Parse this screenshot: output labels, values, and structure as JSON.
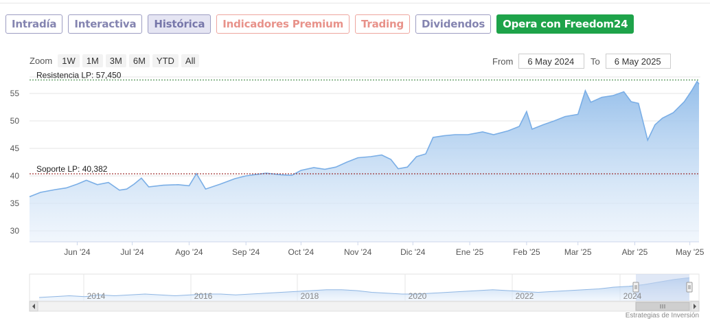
{
  "tabs": [
    {
      "label": "Intradía",
      "style": "purple",
      "active": false
    },
    {
      "label": "Interactiva",
      "style": "purple",
      "active": false
    },
    {
      "label": "Histórica",
      "style": "purple",
      "active": true
    },
    {
      "label": "Indicadores Premium",
      "style": "salmon",
      "active": false
    },
    {
      "label": "Trading",
      "style": "salmon",
      "active": false
    },
    {
      "label": "Dividendos",
      "style": "purple",
      "active": false
    },
    {
      "label": "Opera con Freedom24",
      "style": "green",
      "active": false
    }
  ],
  "zoom": {
    "label": "Zoom",
    "buttons": [
      "1W",
      "1M",
      "3M",
      "6M",
      "YTD",
      "All"
    ]
  },
  "range": {
    "from_label": "From",
    "from_value": "6 May 2024",
    "to_label": "To",
    "to_value": "6 May 2025"
  },
  "colors": {
    "series_line": "#7aaee6",
    "series_fill_top": "#8fbbe9",
    "resistance_line": "#2e7d32",
    "support_line": "#8b0000"
  },
  "chart_data": {
    "type": "area",
    "x_range": [
      "2024-05-06",
      "2025-05-06"
    ],
    "ylim": [
      28,
      58
    ],
    "yticks": [
      30,
      35,
      40,
      45,
      50,
      55
    ],
    "grid": true,
    "x_tick_labels": [
      "Jun '24",
      "Jul '24",
      "Ago '24",
      "Sep '24",
      "Oct '24",
      "Nov '24",
      "Dic '24",
      "Ene '25",
      "Feb '25",
      "Mar '25",
      "Abr '25",
      "May '25"
    ],
    "x_tick_dates": [
      "2024-06-01",
      "2024-07-01",
      "2024-08-01",
      "2024-09-01",
      "2024-10-01",
      "2024-11-01",
      "2024-12-01",
      "2025-01-01",
      "2025-02-01",
      "2025-03-01",
      "2025-04-01",
      "2025-05-01"
    ],
    "series": [
      {
        "points": [
          [
            "2024-05-06",
            36.2
          ],
          [
            "2024-05-12",
            37.0
          ],
          [
            "2024-05-20",
            37.5
          ],
          [
            "2024-05-26",
            37.8
          ],
          [
            "2024-06-01",
            38.5
          ],
          [
            "2024-06-06",
            39.2
          ],
          [
            "2024-06-12",
            38.4
          ],
          [
            "2024-06-18",
            38.8
          ],
          [
            "2024-06-24",
            37.4
          ],
          [
            "2024-06-28",
            37.6
          ],
          [
            "2024-07-02",
            38.5
          ],
          [
            "2024-07-06",
            39.6
          ],
          [
            "2024-07-10",
            38.0
          ],
          [
            "2024-07-18",
            38.3
          ],
          [
            "2024-07-26",
            38.4
          ],
          [
            "2024-08-01",
            38.2
          ],
          [
            "2024-08-05",
            40.4
          ],
          [
            "2024-08-10",
            37.6
          ],
          [
            "2024-08-18",
            38.5
          ],
          [
            "2024-08-26",
            39.5
          ],
          [
            "2024-09-01",
            40.0
          ],
          [
            "2024-09-12",
            40.5
          ],
          [
            "2024-09-20",
            40.2
          ],
          [
            "2024-09-26",
            40.1
          ],
          [
            "2024-10-01",
            41.0
          ],
          [
            "2024-10-08",
            41.5
          ],
          [
            "2024-10-14",
            41.2
          ],
          [
            "2024-10-20",
            41.6
          ],
          [
            "2024-10-26",
            42.5
          ],
          [
            "2024-11-01",
            43.3
          ],
          [
            "2024-11-08",
            43.5
          ],
          [
            "2024-11-14",
            43.8
          ],
          [
            "2024-11-19",
            43.0
          ],
          [
            "2024-11-23",
            41.3
          ],
          [
            "2024-11-28",
            41.6
          ],
          [
            "2024-12-03",
            43.5
          ],
          [
            "2024-12-08",
            44.0
          ],
          [
            "2024-12-12",
            47.0
          ],
          [
            "2024-12-18",
            47.3
          ],
          [
            "2024-12-24",
            47.5
          ],
          [
            "2024-12-31",
            47.5
          ],
          [
            "2025-01-08",
            48.0
          ],
          [
            "2025-01-14",
            47.5
          ],
          [
            "2025-01-22",
            48.2
          ],
          [
            "2025-01-28",
            49.0
          ],
          [
            "2025-02-01",
            51.7
          ],
          [
            "2025-02-04",
            48.5
          ],
          [
            "2025-02-10",
            49.3
          ],
          [
            "2025-02-16",
            50.0
          ],
          [
            "2025-02-22",
            50.8
          ],
          [
            "2025-03-01",
            51.2
          ],
          [
            "2025-03-05",
            55.5
          ],
          [
            "2025-03-08",
            53.4
          ],
          [
            "2025-03-14",
            54.3
          ],
          [
            "2025-03-20",
            54.6
          ],
          [
            "2025-03-26",
            55.3
          ],
          [
            "2025-03-30",
            53.5
          ],
          [
            "2025-04-03",
            53.2
          ],
          [
            "2025-04-08",
            46.5
          ],
          [
            "2025-04-12",
            49.3
          ],
          [
            "2025-04-16",
            50.5
          ],
          [
            "2025-04-22",
            51.5
          ],
          [
            "2025-04-28",
            53.5
          ],
          [
            "2025-05-02",
            55.5
          ],
          [
            "2025-05-05",
            57.2
          ],
          [
            "2025-05-06",
            56.7
          ]
        ]
      }
    ],
    "annotations": [
      {
        "label": "Resistencia LP: 57,450",
        "value": 57.45
      },
      {
        "label": "Soporte LP: 40,382",
        "value": 40.382
      }
    ],
    "navigator": {
      "labels": [
        "2014",
        "2016",
        "2018",
        "2020",
        "2022",
        "2024"
      ]
    }
  },
  "credit": "Estrategias de Inversión"
}
